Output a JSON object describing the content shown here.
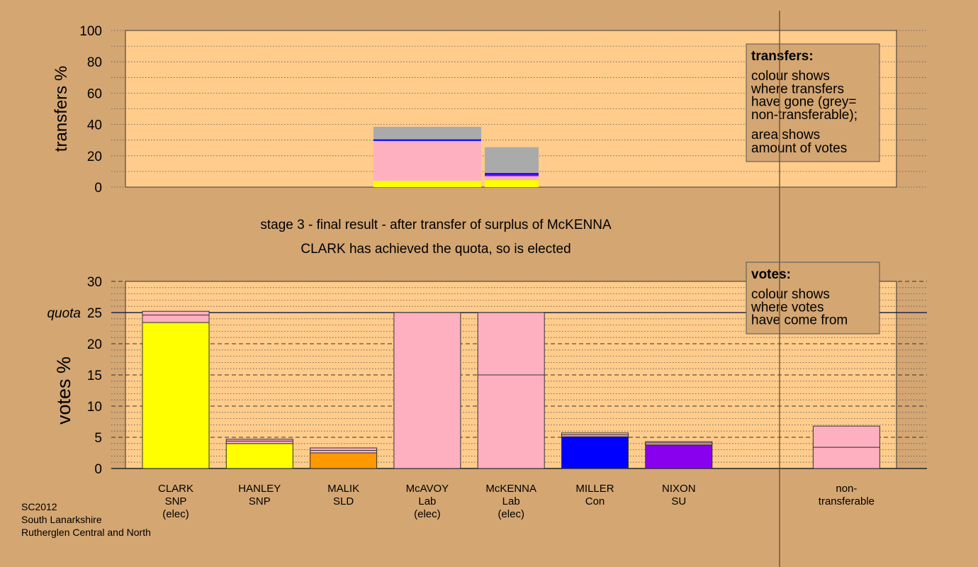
{
  "colors": {
    "background": "#D4A672",
    "plot_bg": "#FFCC8C",
    "SNP": "#FFFF00",
    "SLD": "#FF9900",
    "Lab": "#FFB0C0",
    "Con": "#0000FF",
    "SU": "#8800EE",
    "nontransferable": "#AAAAAA"
  },
  "chart_data": [
    {
      "type": "bar",
      "subtype": "stacked",
      "ylabel": "transfers %",
      "ylim": [
        0,
        100
      ],
      "yticks": [
        "0",
        "20",
        "40",
        "60",
        "80",
        "100"
      ],
      "stacks": [
        {
          "segments": [
            {
              "value": 4,
              "color": "SNP"
            },
            {
              "value": 25.5,
              "color": "Lab"
            },
            {
              "value": 1,
              "color": "Con"
            },
            {
              "value": 8,
              "color": "nontransferable"
            }
          ]
        },
        {
          "segments": [
            {
              "value": 4.5,
              "color": "SNP"
            },
            {
              "value": 2.5,
              "color": "Lab"
            },
            {
              "value": 1,
              "color": "SU"
            },
            {
              "value": 1,
              "color": "Con"
            },
            {
              "value": 16.5,
              "color": "nontransferable"
            }
          ]
        }
      ],
      "legend_box": {
        "title": "transfers:",
        "lines1": [
          "colour shows",
          "where transfers",
          "have gone (grey=",
          "non-transferable);"
        ],
        "lines2": [
          "area shows",
          "amount of votes"
        ]
      }
    },
    {
      "type": "bar",
      "subtype": "stacked",
      "ylabel": "votes %",
      "ylim": [
        0,
        30
      ],
      "yticks": [
        "0",
        "5",
        "10",
        "15",
        "20",
        "25",
        "30"
      ],
      "quota": 25,
      "quota_label": "quota",
      "categories": [
        {
          "lines": [
            "CLARK",
            "SNP",
            "(elec)"
          ],
          "segments": [
            {
              "value": 23.4,
              "color": "SNP"
            },
            {
              "value": 1.2,
              "color": "Lab"
            },
            {
              "value": 0.6,
              "color": "Lab"
            }
          ]
        },
        {
          "lines": [
            "HANLEY",
            "SNP"
          ],
          "segments": [
            {
              "value": 4.0,
              "color": "SNP"
            },
            {
              "value": 0.4,
              "color": "Lab"
            },
            {
              "value": 0.3,
              "color": "Lab"
            }
          ]
        },
        {
          "lines": [
            "MALIK",
            "SLD"
          ],
          "segments": [
            {
              "value": 2.5,
              "color": "SLD"
            },
            {
              "value": 0.4,
              "color": "Lab"
            },
            {
              "value": 0.4,
              "color": "Lab"
            }
          ]
        },
        {
          "lines": [
            "McAVOY",
            "Lab",
            "(elec)"
          ],
          "segments": [
            {
              "value": 25,
              "color": "Lab"
            }
          ]
        },
        {
          "lines": [
            "McKENNA",
            "Lab",
            "(elec)"
          ],
          "segments": [
            {
              "value": 15,
              "color": "Lab"
            },
            {
              "value": 10,
              "color": "Lab"
            }
          ]
        },
        {
          "lines": [
            "MILLER",
            "Con"
          ],
          "segments": [
            {
              "value": 5.1,
              "color": "Con"
            },
            {
              "value": 0.3,
              "color": "Lab"
            },
            {
              "value": 0.3,
              "color": "Lab"
            }
          ]
        },
        {
          "lines": [
            "NIXON",
            "SU"
          ],
          "segments": [
            {
              "value": 3.8,
              "color": "SU"
            },
            {
              "value": 0.3,
              "color": "Lab"
            },
            {
              "value": 0.2,
              "color": "Lab"
            }
          ]
        },
        {
          "lines": [],
          "segments": []
        },
        {
          "lines": [
            "non-",
            "transferable"
          ],
          "segments": [
            {
              "value": 3.4,
              "color": "Lab"
            },
            {
              "value": 3.4,
              "color": "Lab"
            }
          ]
        }
      ],
      "legend_box": {
        "title": "votes:",
        "lines1": [
          "colour shows",
          "where votes",
          "have come from"
        ]
      }
    }
  ],
  "heading": {
    "line1": "stage 3 - final result - after transfer of surplus of McKENNA",
    "line2": "CLARK has achieved the quota, so is elected"
  },
  "footer": {
    "lines": [
      "SC2012",
      "South Lanarkshire",
      "Rutherglen Central and North"
    ]
  }
}
